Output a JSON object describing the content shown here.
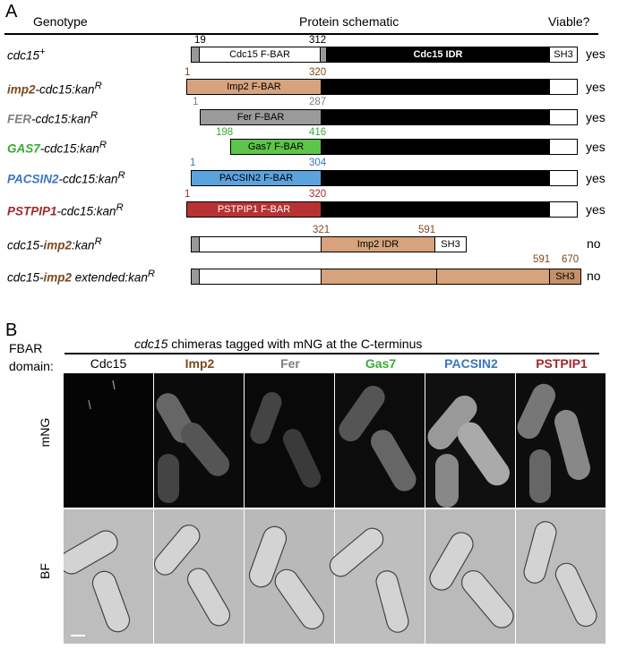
{
  "panel_a": {
    "label": "A",
    "headers": {
      "genotype": "Genotype",
      "schematic": "Protein schematic",
      "viable": "Viable?"
    },
    "rows": [
      {
        "prefix": "cdc15",
        "sup": "+",
        "bold": "",
        "rest": "",
        "viable": "yes",
        "n1": "19",
        "n2": "312",
        "fbar": "Cdc15 F-BAR",
        "idr": "Cdc15 IDR",
        "sh3": "SH3"
      },
      {
        "prefix": "",
        "bold": "imp2",
        "rest": "-cdc15:kan",
        "sup": "R",
        "viable": "yes",
        "n1": "1",
        "n2": "320",
        "fbar": "Imp2 F-BAR"
      },
      {
        "prefix": "",
        "bold": "FER",
        "rest": "-cdc15:kan",
        "sup": "R",
        "viable": "yes",
        "n1": "1",
        "n2": "287",
        "fbar": "Fer F-BAR"
      },
      {
        "prefix": "",
        "bold": "GAS7",
        "rest": "-cdc15:kan",
        "sup": "R",
        "viable": "yes",
        "n1": "198",
        "n2": "416",
        "fbar": "Gas7 F-BAR"
      },
      {
        "prefix": "",
        "bold": "PACSIN2",
        "rest": "-cdc15:kan",
        "sup": "R",
        "viable": "yes",
        "n1": "1",
        "n2": "304",
        "fbar": "PACSIN2 F-BAR"
      },
      {
        "prefix": "",
        "bold": "PSTPIP1",
        "rest": "-cdc15:kan",
        "sup": "R",
        "viable": "yes",
        "n1": "1",
        "n2": "320",
        "fbar": "PSTPIP1 F-BAR"
      },
      {
        "prefix": "cdc15-",
        "bold": "imp2",
        "rest": ":kan",
        "sup": "R",
        "viable": "no",
        "n1": "321",
        "n2": "591",
        "idr": "Imp2 IDR",
        "sh3": "SH3"
      },
      {
        "prefix": "cdc15-",
        "bold": "imp2",
        "rest": " extended:kan",
        "sup": "R",
        "viable": "no",
        "n1": "591",
        "n2": "670",
        "sh3": "SH3"
      }
    ]
  },
  "panel_b": {
    "label": "B",
    "title_italic": "cdc15",
    "title_rest": " chimeras tagged with mNG at the C-terminus",
    "fbar_label_1": "FBAR",
    "fbar_label_2": "domain:",
    "columns": [
      "Cdc15",
      "Imp2",
      "Fer",
      "Gas7",
      "PACSIN2",
      "PSTPIP1"
    ],
    "rows": [
      "mNG",
      "BF"
    ]
  },
  "colors": {
    "imp2": "#7a4a1e",
    "fer": "#7f7f7f",
    "gas7": "#3aaa35",
    "pacsin2": "#3a76c0",
    "pstpip1": "#a3272a",
    "imp2_fill": "#d6a37c",
    "fer_fill": "#9b9b9b",
    "gas7_fill": "#5ec44b",
    "pacsin2_fill": "#5ca3de",
    "pstpip1_fill": "#b83233"
  }
}
